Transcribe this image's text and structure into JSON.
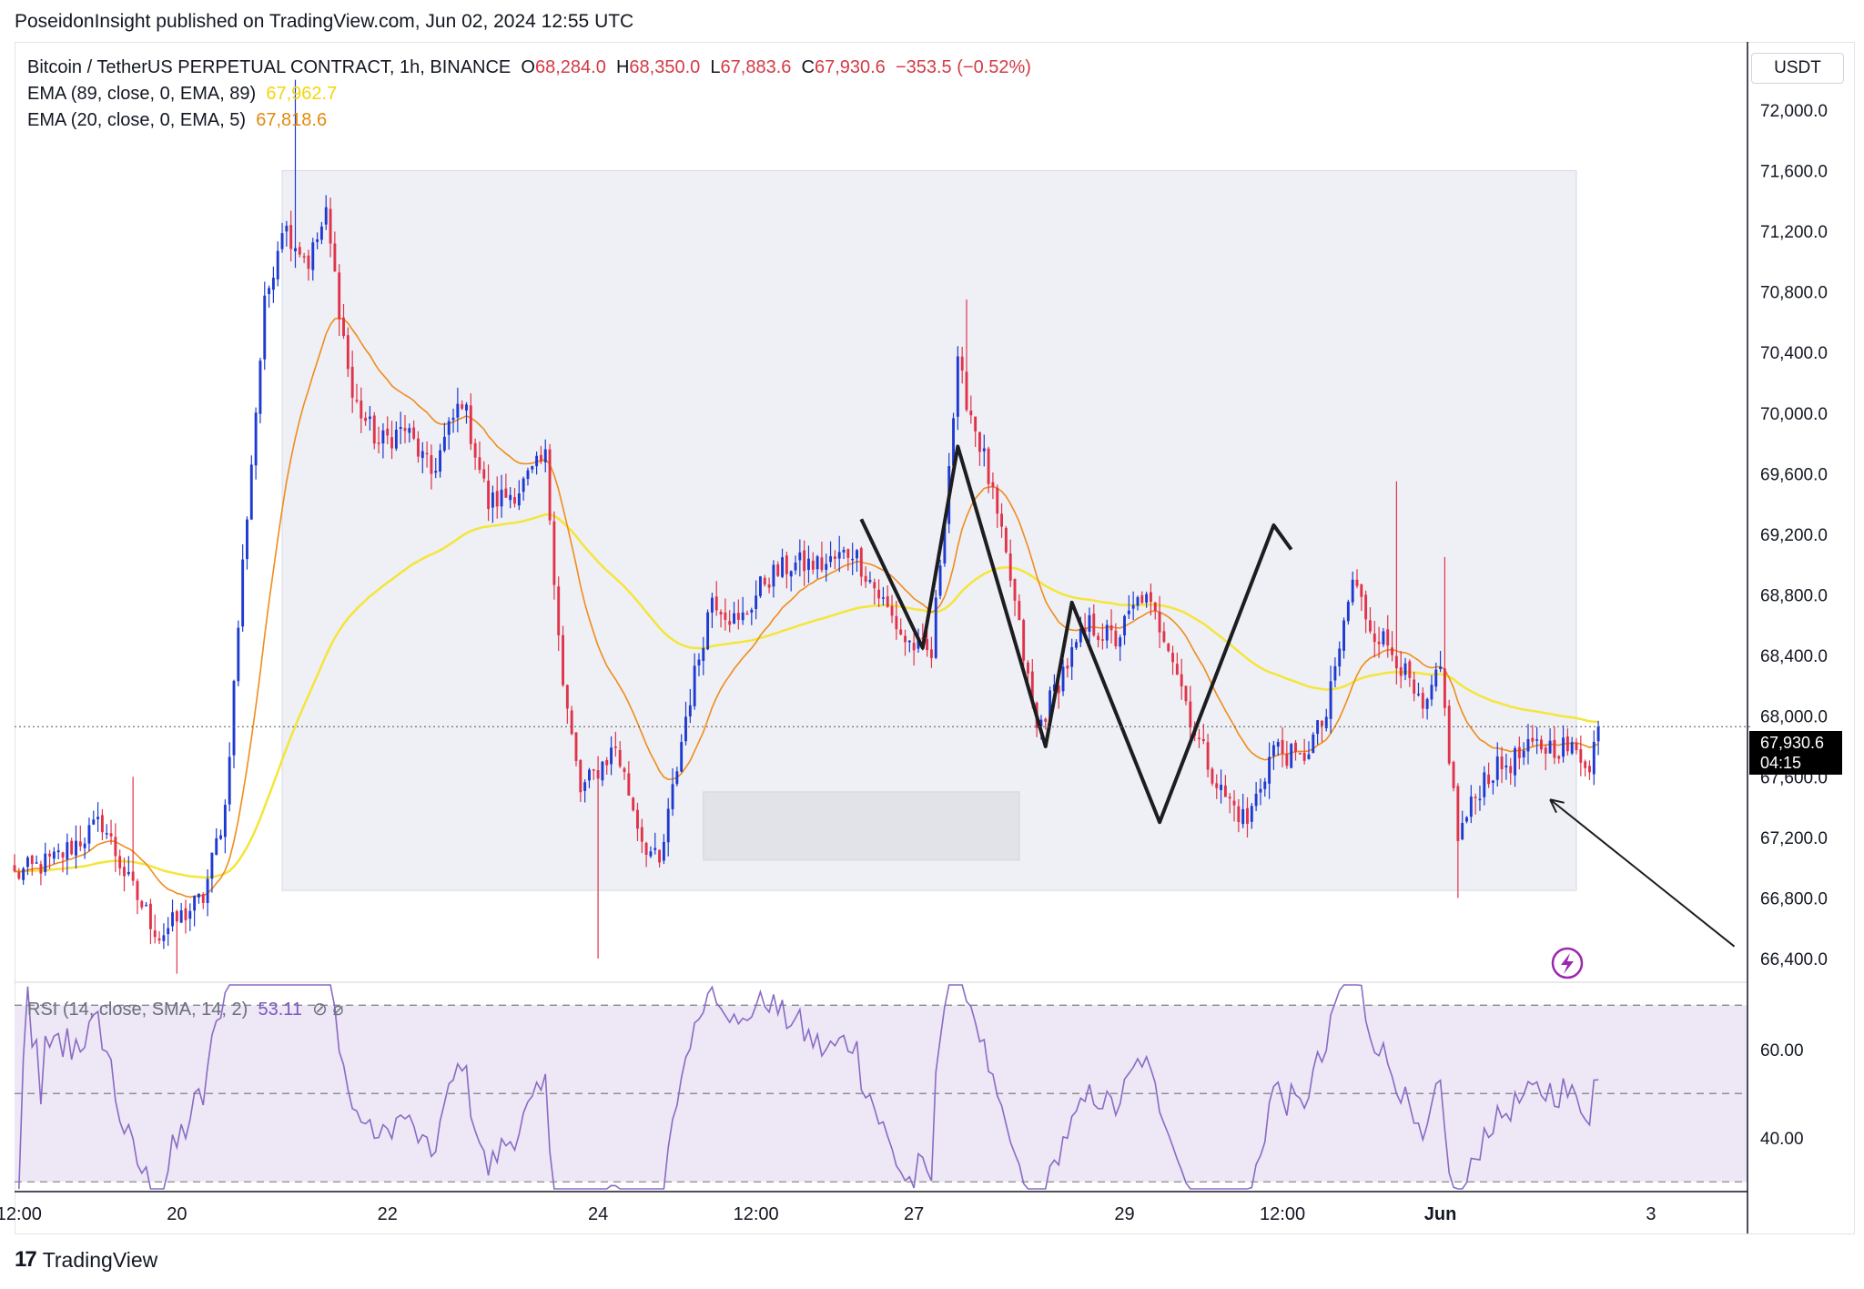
{
  "publisher": {
    "text": "PoseidonInsight published on TradingView.com, Jun 02, 2024 12:55 UTC"
  },
  "legend": {
    "symbol": "Bitcoin / TetherUS PERPETUAL CONTRACT, 1h, BINANCE",
    "o_label": "O",
    "o": "68,284.0",
    "h_label": "H",
    "h": "68,350.0",
    "l_label": "L",
    "l": "67,883.6",
    "c_label": "C",
    "c": "67,930.6",
    "change": "−353.5 (−0.52%)",
    "ema89_label": "EMA (89, close, 0, EMA, 89)",
    "ema89_value": "67,962.7",
    "ema20_label": "EMA (20, close, 0, EMA, 5)",
    "ema20_value": "67,818.6"
  },
  "rsi_legend": {
    "label": "RSI (14, close, SMA, 14, 2)",
    "value": "53.11"
  },
  "currency": "USDT",
  "last_price": {
    "price": "67,930.6",
    "countdown": "04:15"
  },
  "footer": {
    "brand": "TradingView",
    "mark": "17"
  },
  "colors": {
    "up": "#1e3ad1",
    "down": "#e0334a",
    "ema89": "#f5e53a",
    "ema20": "#f08c1c",
    "rsi": "#8a6bc4",
    "rsi_band": "#ede7f6",
    "zone": "#eef0f5"
  },
  "chart_data": [
    {
      "type": "candlestick",
      "title": "Bitcoin / TetherUS PERPETUAL CONTRACT, 1h, BINANCE",
      "ylim": [
        66250,
        72450
      ],
      "y_ticks": [
        "72,000.0",
        "71,600.0",
        "71,200.0",
        "70,800.0",
        "70,400.0",
        "70,000.0",
        "69,600.0",
        "69,200.0",
        "68,800.0",
        "68,400.0",
        "68,000.0",
        "67,600.0",
        "67,200.0",
        "66,800.0",
        "66,400.0"
      ],
      "y_tick_values": [
        72000,
        71600,
        71200,
        70800,
        70400,
        70000,
        69600,
        69200,
        68800,
        68400,
        68000,
        67600,
        67200,
        66800,
        66400
      ],
      "x_ticks": [
        "12:00",
        "20",
        "22",
        "24",
        "12:00",
        "27",
        "29",
        "12:00",
        "Jun",
        "3"
      ],
      "x_tick_times": [
        "2024-05-18 12:00",
        "2024-05-20",
        "2024-05-22",
        "2024-05-24",
        "2024-05-25 12:00",
        "2024-05-27",
        "2024-05-29",
        "2024-05-30 12:00",
        "2024-06-01",
        "2024-06-03"
      ],
      "x_range": [
        "2024-05-18 11:00",
        "2024-06-03 22:00"
      ],
      "last_price": 67930.6,
      "anchors": [
        [
          "2024-05-18 11:00",
          66950
        ],
        [
          "2024-05-18 20:00",
          67050
        ],
        [
          "2024-05-19 07:00",
          67300
        ],
        [
          "2024-05-19 13:00",
          66900
        ],
        [
          "2024-05-19 20:00",
          66550
        ],
        [
          "2024-05-20 06:00",
          66800
        ],
        [
          "2024-05-20 11:00",
          67400
        ],
        [
          "2024-05-20 15:00",
          69000
        ],
        [
          "2024-05-20 20:00",
          70700
        ],
        [
          "2024-05-21 00:00",
          71250
        ],
        [
          "2024-05-21 06:00",
          71000
        ],
        [
          "2024-05-21 10:00",
          71300
        ],
        [
          "2024-05-21 16:00",
          70100
        ],
        [
          "2024-05-21 22:00",
          69800
        ],
        [
          "2024-05-22 04:00",
          69900
        ],
        [
          "2024-05-22 10:00",
          69600
        ],
        [
          "2024-05-22 17:00",
          70100
        ],
        [
          "2024-05-22 23:00",
          69400
        ],
        [
          "2024-05-23 06:00",
          69500
        ],
        [
          "2024-05-23 12:00",
          69700
        ],
        [
          "2024-05-23 16:00",
          68200
        ],
        [
          "2024-05-23 20:00",
          67500
        ],
        [
          "2024-05-24 04:00",
          67800
        ],
        [
          "2024-05-24 10:00",
          67200
        ],
        [
          "2024-05-24 14:00",
          67000
        ],
        [
          "2024-05-24 20:00",
          68000
        ],
        [
          "2024-05-25 02:00",
          68800
        ],
        [
          "2024-05-25 08:00",
          68600
        ],
        [
          "2024-05-25 14:00",
          68900
        ],
        [
          "2024-05-25 20:00",
          69000
        ],
        [
          "2024-05-26 04:00",
          69000
        ],
        [
          "2024-05-26 10:00",
          69100
        ],
        [
          "2024-05-26 16:00",
          68800
        ],
        [
          "2024-05-26 22:00",
          68500
        ],
        [
          "2024-05-27 04:00",
          68400
        ],
        [
          "2024-05-27 10:00",
          70300
        ],
        [
          "2024-05-27 16:00",
          69700
        ],
        [
          "2024-05-27 22:00",
          68900
        ],
        [
          "2024-05-28 04:00",
          67900
        ],
        [
          "2024-05-28 10:00",
          68300
        ],
        [
          "2024-05-28 16:00",
          68600
        ],
        [
          "2024-05-28 22:00",
          68500
        ],
        [
          "2024-05-29 04:00",
          68800
        ],
        [
          "2024-05-29 10:00",
          68500
        ],
        [
          "2024-05-29 16:00",
          67900
        ],
        [
          "2024-05-29 22:00",
          67500
        ],
        [
          "2024-05-30 04:00",
          67300
        ],
        [
          "2024-05-30 10:00",
          67800
        ],
        [
          "2024-05-30 16:00",
          67700
        ],
        [
          "2024-05-30 22:00",
          68000
        ],
        [
          "2024-05-31 04:00",
          68900
        ],
        [
          "2024-05-31 08:00",
          68600
        ],
        [
          "2024-05-31 14:00",
          68400
        ],
        [
          "2024-05-31 20:00",
          68000
        ],
        [
          "2024-06-01 00:00",
          68300
        ],
        [
          "2024-06-01 04:00",
          67200
        ],
        [
          "2024-06-01 10:00",
          67600
        ],
        [
          "2024-06-01 16:00",
          67700
        ],
        [
          "2024-06-01 22:00",
          67800
        ],
        [
          "2024-06-02 04:00",
          67800
        ],
        [
          "2024-06-02 10:00",
          67700
        ],
        [
          "2024-06-02 12:00",
          67930.6
        ]
      ],
      "extremes": [
        [
          "2024-05-21 03:00",
          72200
        ],
        [
          "2024-05-19 14:00",
          67600
        ],
        [
          "2024-05-20 00:00",
          66300
        ],
        [
          "2024-05-24 00:00",
          66400
        ],
        [
          "2024-05-27 12:00",
          70750
        ],
        [
          "2024-06-01 04:00",
          66800
        ],
        [
          "2024-05-31 14:00",
          69550
        ],
        [
          "2024-06-01 01:00",
          69050
        ]
      ],
      "series": [
        {
          "name": "EMA (89, close, 0, EMA, 89)",
          "color": "#f5e53a",
          "last": 67962.7
        },
        {
          "name": "EMA (20, close, 0, EMA, 5)",
          "color": "#f08c1c",
          "last": 67818.6
        }
      ],
      "zones": [
        {
          "from": "2024-05-21 00:00",
          "to": "2024-06-02 07:00",
          "low": 66850,
          "high": 71600
        },
        {
          "from": "2024-05-25 00:00",
          "to": "2024-05-28 00:00",
          "low": 67050,
          "high": 67500
        }
      ],
      "drawings": [
        {
          "kind": "zigzag",
          "points": [
            [
              "2024-05-26 12:00",
              69300
            ],
            [
              "2024-05-27 02:00",
              68450
            ],
            [
              "2024-05-27 10:00",
              69780
            ],
            [
              "2024-05-28 06:00",
              67800
            ],
            [
              "2024-05-28 12:00",
              68750
            ],
            [
              "2024-05-29 08:00",
              67300
            ],
            [
              "2024-05-30 10:00",
              69260
            ],
            [
              "2024-05-30 14:00",
              69100
            ]
          ]
        },
        {
          "kind": "arrow",
          "from": [
            "2024-06-03 19:00",
            66480
          ],
          "to": [
            "2024-06-02 01:00",
            67450
          ]
        }
      ]
    },
    {
      "type": "line",
      "title": "RSI (14, close, SMA, 14, 2)",
      "ylim": [
        28,
        75
      ],
      "y_ticks": [
        "60.00",
        "40.00"
      ],
      "y_tick_values": [
        60,
        40
      ],
      "bands": [
        70,
        50,
        30
      ],
      "last": 53.11
    }
  ]
}
